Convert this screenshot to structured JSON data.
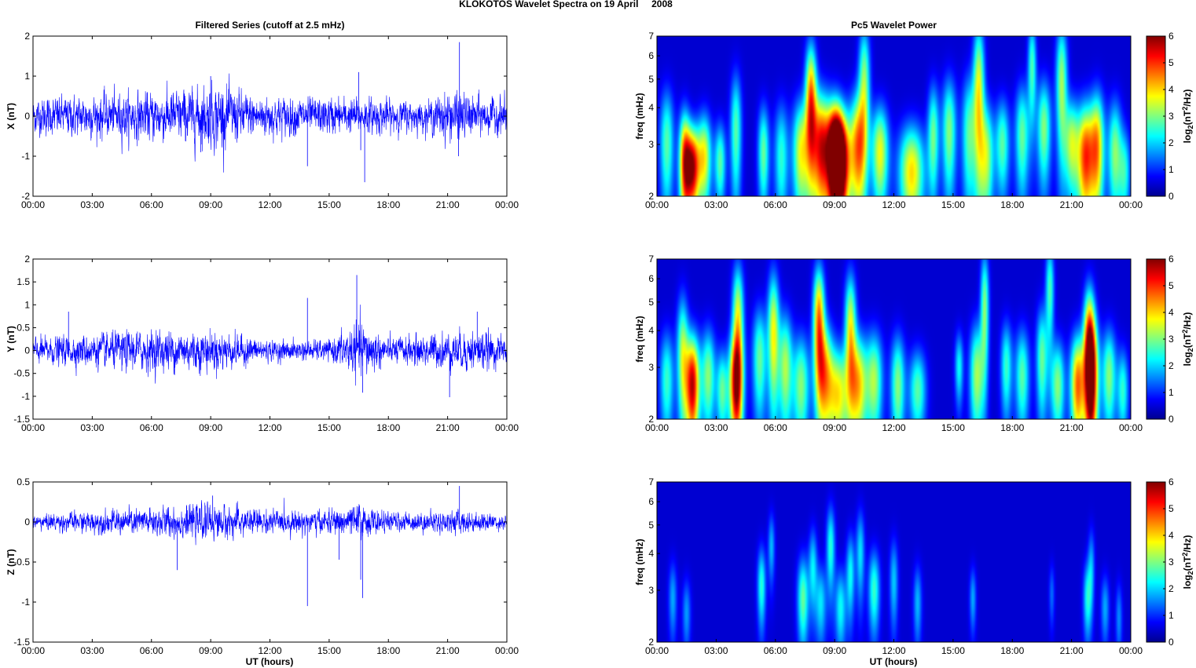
{
  "figure": {
    "title": "KLOKOTOS Wavelet Spectra on 19 April     2008",
    "xlabel": "UT (hours)",
    "xticks": [
      "00:00",
      "03:00",
      "06:00",
      "09:00",
      "12:00",
      "15:00",
      "18:00",
      "21:00",
      "00:00"
    ],
    "line_color": "#0000ff",
    "colormap": "jet"
  },
  "chart_data": [
    {
      "type": "line",
      "title": "Filtered Series (cutoff at 2.5 mHz)",
      "ylabel": "X (nT)",
      "ylim": [
        -2,
        2
      ],
      "yticks": [
        "2",
        "1",
        "0",
        "-1",
        "-2"
      ],
      "x_range_hours": [
        0,
        24
      ],
      "amplitude": 0.3,
      "envelope": [
        [
          0,
          0.25
        ],
        [
          7,
          0.35
        ],
        [
          9.5,
          0.45
        ],
        [
          11,
          0.3
        ],
        [
          14,
          0.25
        ],
        [
          16.5,
          0.25
        ],
        [
          20,
          0.2
        ],
        [
          21,
          0.35
        ],
        [
          23,
          0.25
        ],
        [
          24,
          0.25
        ]
      ],
      "spikes": [
        [
          13.9,
          -1.25
        ],
        [
          16.5,
          1.1
        ],
        [
          16.6,
          -0.85
        ],
        [
          16.8,
          -1.65
        ],
        [
          21.6,
          1.85
        ],
        [
          21.55,
          -1.0
        ],
        [
          9.0,
          1.0
        ],
        [
          8.5,
          -0.9
        ]
      ]
    },
    {
      "type": "line",
      "title": "",
      "ylabel": "Y (nT)",
      "ylim": [
        -1.5,
        2
      ],
      "yticks": [
        "2",
        "1.5",
        "1",
        "0.5",
        "0",
        "-0.5",
        "-1",
        "-1.5"
      ],
      "x_range_hours": [
        0,
        24
      ],
      "amplitude": 0.2,
      "envelope": [
        [
          0,
          0.15
        ],
        [
          6,
          0.25
        ],
        [
          9,
          0.25
        ],
        [
          12,
          0.12
        ],
        [
          15,
          0.12
        ],
        [
          16.5,
          0.35
        ],
        [
          18,
          0.15
        ],
        [
          20,
          0.2
        ],
        [
          22.5,
          0.25
        ],
        [
          24,
          0.15
        ]
      ],
      "spikes": [
        [
          1.8,
          0.85
        ],
        [
          13.9,
          1.15
        ],
        [
          16.4,
          1.65
        ],
        [
          16.7,
          -0.92
        ],
        [
          21.1,
          -1.02
        ],
        [
          22.5,
          0.85
        ],
        [
          4.5,
          -0.45
        ]
      ]
    },
    {
      "type": "line",
      "title": "",
      "ylabel": "Z (nT)",
      "ylim": [
        -1.5,
        0.5
      ],
      "yticks": [
        "0.5",
        "0",
        "-0.5",
        "-1",
        "-1.5"
      ],
      "x_range_hours": [
        0,
        24
      ],
      "amplitude": 0.06,
      "envelope": [
        [
          0,
          0.05
        ],
        [
          6,
          0.1
        ],
        [
          9,
          0.12
        ],
        [
          12,
          0.08
        ],
        [
          15,
          0.08
        ],
        [
          16.5,
          0.12
        ],
        [
          18,
          0.06
        ],
        [
          21.5,
          0.08
        ],
        [
          24,
          0.05
        ]
      ],
      "spikes": [
        [
          7.3,
          -0.6
        ],
        [
          9.1,
          0.33
        ],
        [
          13.9,
          -1.05
        ],
        [
          15.5,
          -0.47
        ],
        [
          16.7,
          -0.95
        ],
        [
          16.6,
          -0.72
        ],
        [
          21.6,
          0.45
        ],
        [
          24,
          -0.25
        ]
      ]
    },
    {
      "type": "heatmap",
      "title": "Pc5 Wavelet Power",
      "ylabel": "freq (mHz)",
      "yticks": [
        "7",
        "6",
        "5",
        "4",
        "3",
        "2"
      ],
      "ylim": [
        2,
        7
      ],
      "yscale": "log",
      "x_range_hours": [
        0,
        24
      ],
      "colorbar": {
        "label": "log2(nT2/Hz)",
        "ticks": [
          "6",
          "5",
          "4",
          "3",
          "2",
          "1",
          "0"
        ],
        "range": [
          0,
          6
        ]
      },
      "blobs": [
        [
          0.5,
          3.0,
          2.5,
          0.25,
          1.0
        ],
        [
          1.4,
          2.6,
          4.5,
          0.2,
          0.8
        ],
        [
          1.8,
          2.5,
          5.5,
          0.25,
          0.6
        ],
        [
          2.4,
          2.7,
          3.5,
          0.25,
          0.7
        ],
        [
          3.2,
          2.6,
          2.5,
          0.2,
          0.6
        ],
        [
          4.0,
          3.3,
          2.5,
          0.2,
          1.2
        ],
        [
          5.4,
          2.8,
          2.6,
          0.2,
          0.8
        ],
        [
          6.3,
          2.7,
          2.2,
          0.25,
          0.9
        ],
        [
          7.3,
          2.8,
          3.5,
          0.3,
          0.9
        ],
        [
          7.8,
          4.2,
          4.5,
          0.2,
          1.5
        ],
        [
          8.3,
          2.9,
          5.0,
          0.3,
          1.0
        ],
        [
          9.0,
          2.8,
          5.8,
          0.3,
          0.9
        ],
        [
          9.3,
          2.6,
          6.0,
          0.35,
          0.8
        ],
        [
          10.2,
          2.9,
          4.3,
          0.3,
          1.0
        ],
        [
          10.5,
          5.0,
          2.8,
          0.2,
          1.6
        ],
        [
          11.3,
          2.8,
          3.5,
          0.3,
          0.8
        ],
        [
          12.9,
          2.4,
          3.8,
          0.45,
          0.7
        ],
        [
          14.0,
          3.2,
          2.6,
          0.2,
          1.0
        ],
        [
          14.8,
          3.3,
          2.8,
          0.25,
          1.1
        ],
        [
          15.8,
          3.2,
          2.5,
          0.25,
          1.2
        ],
        [
          16.3,
          4.5,
          3.5,
          0.2,
          2.0
        ],
        [
          16.7,
          2.7,
          3.0,
          0.25,
          0.9
        ],
        [
          17.5,
          3.0,
          2.5,
          0.25,
          0.8
        ],
        [
          18.5,
          3.2,
          2.6,
          0.25,
          1.0
        ],
        [
          19.0,
          5.5,
          2.4,
          0.15,
          1.5
        ],
        [
          19.6,
          3.4,
          2.8,
          0.25,
          1.0
        ],
        [
          20.5,
          4.8,
          3.0,
          0.2,
          1.8
        ],
        [
          21.0,
          3.0,
          3.0,
          0.25,
          0.8
        ],
        [
          21.7,
          2.7,
          4.8,
          0.3,
          0.9
        ],
        [
          22.3,
          2.9,
          4.0,
          0.25,
          1.0
        ],
        [
          23.2,
          2.8,
          2.8,
          0.25,
          0.9
        ],
        [
          23.7,
          2.4,
          2.0,
          0.2,
          0.6
        ]
      ]
    },
    {
      "type": "heatmap",
      "title": "",
      "ylabel": "freq (mHz)",
      "yticks": [
        "7",
        "6",
        "5",
        "4",
        "3",
        "2"
      ],
      "ylim": [
        2,
        7
      ],
      "yscale": "log",
      "x_range_hours": [
        0,
        24
      ],
      "colorbar": {
        "label": "log2(nT2/Hz)",
        "ticks": [
          "6",
          "5",
          "4",
          "3",
          "2",
          "1",
          "0"
        ],
        "range": [
          0,
          6
        ]
      },
      "blobs": [
        [
          0.5,
          2.7,
          2.3,
          0.25,
          0.8
        ],
        [
          1.3,
          3.3,
          3.0,
          0.2,
          1.2
        ],
        [
          1.8,
          2.6,
          5.6,
          0.25,
          0.8
        ],
        [
          2.6,
          2.8,
          2.8,
          0.25,
          0.8
        ],
        [
          3.3,
          2.5,
          2.5,
          0.2,
          0.6
        ],
        [
          4.0,
          2.6,
          5.0,
          0.25,
          0.8
        ],
        [
          4.1,
          4.3,
          3.5,
          0.2,
          1.5
        ],
        [
          5.2,
          3.2,
          2.6,
          0.25,
          1.0
        ],
        [
          5.9,
          3.9,
          3.5,
          0.2,
          1.5
        ],
        [
          6.5,
          3.0,
          3.0,
          0.25,
          1.0
        ],
        [
          7.3,
          2.6,
          2.8,
          0.3,
          0.8
        ],
        [
          8.2,
          4.4,
          4.3,
          0.2,
          1.4
        ],
        [
          8.5,
          2.8,
          3.8,
          0.3,
          0.9
        ],
        [
          9.2,
          2.4,
          3.5,
          0.35,
          0.7
        ],
        [
          9.8,
          4.0,
          3.5,
          0.2,
          1.4
        ],
        [
          10.2,
          2.6,
          3.8,
          0.3,
          0.8
        ],
        [
          11.0,
          2.7,
          3.0,
          0.3,
          0.8
        ],
        [
          12.2,
          2.6,
          2.8,
          0.25,
          0.8
        ],
        [
          13.2,
          2.5,
          2.5,
          0.3,
          0.6
        ],
        [
          15.3,
          3.0,
          2.0,
          0.15,
          0.6
        ],
        [
          16.2,
          2.8,
          3.0,
          0.25,
          0.9
        ],
        [
          16.6,
          4.8,
          2.8,
          0.15,
          1.6
        ],
        [
          17.7,
          3.0,
          2.3,
          0.2,
          0.8
        ],
        [
          18.5,
          2.8,
          2.5,
          0.25,
          0.8
        ],
        [
          19.5,
          3.2,
          2.6,
          0.2,
          1.0
        ],
        [
          19.9,
          5.5,
          2.4,
          0.15,
          1.5
        ],
        [
          20.3,
          2.6,
          2.8,
          0.25,
          0.7
        ],
        [
          21.3,
          2.6,
          4.5,
          0.25,
          0.8
        ],
        [
          22.0,
          2.7,
          5.6,
          0.25,
          1.0
        ],
        [
          21.9,
          3.8,
          4.0,
          0.2,
          1.2
        ],
        [
          22.9,
          2.8,
          2.8,
          0.25,
          0.8
        ],
        [
          23.6,
          2.5,
          2.2,
          0.2,
          0.6
        ]
      ]
    },
    {
      "type": "heatmap",
      "title": "",
      "ylabel": "freq (mHz)",
      "yticks": [
        "7",
        "6",
        "5",
        "4",
        "3",
        "2"
      ],
      "ylim": [
        2,
        7
      ],
      "yscale": "log",
      "x_range_hours": [
        0,
        24
      ],
      "colorbar": {
        "label": "log2(nT2/Hz)",
        "ticks": [
          "6",
          "5",
          "4",
          "3",
          "2",
          "1",
          "0"
        ],
        "range": [
          0,
          6
        ]
      },
      "blobs": [
        [
          0.8,
          2.8,
          1.4,
          0.15,
          0.6
        ],
        [
          1.5,
          2.5,
          1.3,
          0.15,
          0.5
        ],
        [
          5.3,
          3.1,
          2.2,
          0.15,
          0.7
        ],
        [
          5.8,
          4.2,
          1.5,
          0.12,
          0.8
        ],
        [
          7.4,
          2.8,
          2.6,
          0.2,
          0.7
        ],
        [
          7.9,
          3.6,
          1.8,
          0.15,
          0.8
        ],
        [
          8.3,
          2.7,
          1.8,
          0.2,
          0.6
        ],
        [
          8.8,
          4.2,
          2.2,
          0.15,
          1.0
        ],
        [
          9.3,
          2.6,
          2.0,
          0.2,
          0.6
        ],
        [
          9.8,
          3.4,
          2.0,
          0.15,
          0.8
        ],
        [
          10.3,
          4.0,
          1.8,
          0.15,
          1.0
        ],
        [
          11.0,
          3.0,
          2.3,
          0.2,
          0.7
        ],
        [
          12.0,
          3.2,
          1.6,
          0.15,
          0.8
        ],
        [
          13.2,
          2.7,
          1.5,
          0.15,
          0.6
        ],
        [
          16.0,
          2.8,
          1.4,
          0.12,
          0.5
        ],
        [
          20.0,
          2.9,
          1.0,
          0.1,
          0.5
        ],
        [
          21.8,
          2.8,
          2.0,
          0.15,
          0.6
        ],
        [
          22.0,
          3.6,
          1.4,
          0.12,
          0.8
        ],
        [
          22.7,
          2.6,
          1.4,
          0.15,
          0.5
        ],
        [
          23.4,
          2.4,
          1.2,
          0.12,
          0.5
        ]
      ]
    }
  ]
}
